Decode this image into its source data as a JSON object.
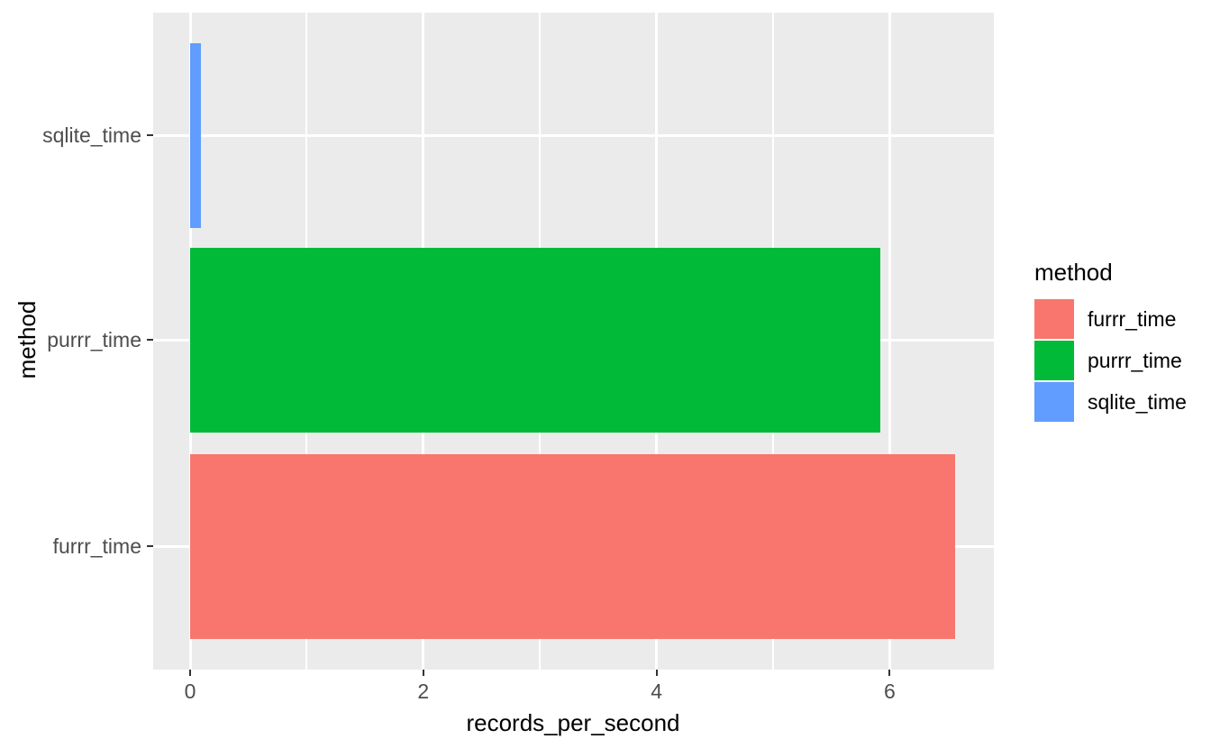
{
  "figure": {
    "background": "#FFFFFF",
    "panel_background": "#EBEBEB",
    "gridline_color": "#FFFFFF",
    "tick_color": "#333333",
    "tick_label_color": "#4D4D4D",
    "axis_title_color": "#000000"
  },
  "chart_data": {
    "type": "bar",
    "orientation": "horizontal",
    "title": "",
    "xlabel": "records_per_second",
    "ylabel": "method",
    "categories": [
      "sqlite_time",
      "purrr_time",
      "furrr_time"
    ],
    "values": [
      0.09,
      5.92,
      6.56
    ],
    "colors": [
      "#619CFF",
      "#00BA38",
      "#F8766D"
    ],
    "xlim": [
      0,
      6.9
    ],
    "x_major_ticks": [
      0,
      2,
      4,
      6
    ],
    "x_minor_ticks": [
      1,
      3,
      5
    ],
    "grid": "on",
    "legend": {
      "title": "method",
      "position": "right",
      "entries": [
        {
          "label": "furrr_time",
          "color": "#F8766D"
        },
        {
          "label": "purrr_time",
          "color": "#00BA38"
        },
        {
          "label": "sqlite_time",
          "color": "#619CFF"
        }
      ]
    }
  }
}
